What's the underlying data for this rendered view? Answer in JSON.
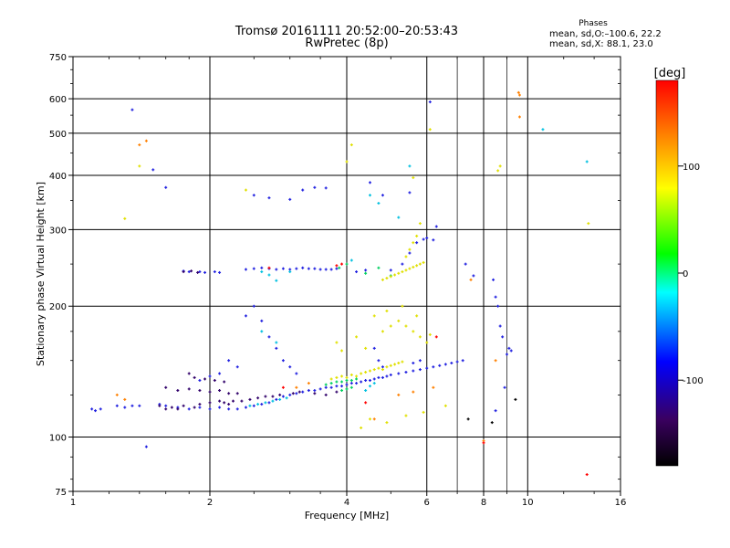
{
  "header": {
    "title_line1": "Tromsø 20161111 20:52:00–20:53:43",
    "title_line2": "RwPretec (8p)",
    "phases_title": "Phases",
    "phases_o": "mean, sd,O:–100.6, 22.2",
    "phases_x": "mean, sd,X:  88.1, 23.0"
  },
  "chart_data": {
    "type": "scatter",
    "xlabel": "Frequency [MHz]",
    "ylabel": "Stationary phase Virtual Height [km]",
    "x_scale": "log",
    "y_scale": "log",
    "xlim": [
      1,
      16
    ],
    "ylim": [
      75,
      750
    ],
    "x_ticks": [
      1,
      2,
      4,
      6,
      8,
      10,
      16
    ],
    "x_tick_labels": [
      "1",
      "2",
      "4",
      "6",
      "8",
      "10",
      "16"
    ],
    "y_ticks": [
      75,
      100,
      200,
      300,
      400,
      500,
      600,
      750
    ],
    "y_tick_labels": [
      "75",
      "100",
      "200",
      "300",
      "400",
      "500",
      "600",
      "750"
    ],
    "grid": true,
    "colorbar": {
      "label": "[deg]",
      "range": [
        -180,
        180
      ],
      "ticks": [
        100,
        0,
        -100
      ],
      "tick_labels": [
        "100",
        "0",
        "-100"
      ],
      "colors": [
        "#000000",
        "#3a0060",
        "#0000ff",
        "#00ffff",
        "#00ff00",
        "#ffff00",
        "#ff8000",
        "#ff0000"
      ]
    },
    "series": [
      {
        "color": "#2020e0",
        "points": [
          [
            1.1,
            116
          ],
          [
            1.12,
            115
          ],
          [
            1.15,
            116
          ],
          [
            1.25,
            118
          ],
          [
            1.3,
            117
          ],
          [
            1.35,
            118
          ],
          [
            1.4,
            118
          ],
          [
            1.55,
            119
          ],
          [
            1.6,
            118
          ],
          [
            1.7,
            117
          ],
          [
            1.8,
            116
          ],
          [
            1.9,
            117
          ],
          [
            2.0,
            116
          ],
          [
            2.1,
            117
          ],
          [
            2.2,
            116
          ],
          [
            2.3,
            116
          ],
          [
            2.4,
            117
          ],
          [
            2.5,
            118
          ],
          [
            2.6,
            119
          ],
          [
            2.7,
            120
          ],
          [
            2.8,
            122
          ],
          [
            2.9,
            124
          ],
          [
            3.0,
            125
          ],
          [
            3.1,
            126
          ],
          [
            3.2,
            127
          ],
          [
            3.3,
            128
          ],
          [
            3.4,
            128
          ],
          [
            3.5,
            129
          ],
          [
            3.6,
            130
          ],
          [
            3.7,
            130
          ],
          [
            3.8,
            131
          ],
          [
            3.9,
            131
          ],
          [
            4.0,
            132
          ],
          [
            4.1,
            133
          ],
          [
            4.2,
            133
          ],
          [
            4.3,
            134
          ],
          [
            4.4,
            135
          ],
          [
            4.5,
            135
          ],
          [
            4.6,
            136
          ],
          [
            4.7,
            137
          ],
          [
            4.8,
            137
          ],
          [
            4.9,
            138
          ],
          [
            5.0,
            139
          ],
          [
            5.2,
            140
          ],
          [
            5.4,
            141
          ],
          [
            5.6,
            142
          ],
          [
            5.8,
            143
          ],
          [
            6.0,
            144
          ],
          [
            6.2,
            145
          ],
          [
            6.4,
            146
          ],
          [
            6.6,
            147
          ],
          [
            6.8,
            148
          ],
          [
            7.0,
            149
          ],
          [
            7.2,
            150
          ],
          [
            1.75,
            241
          ],
          [
            1.8,
            240
          ],
          [
            1.9,
            240
          ],
          [
            1.95,
            239
          ],
          [
            2.05,
            240
          ],
          [
            2.1,
            239
          ],
          [
            2.4,
            243
          ],
          [
            2.5,
            244
          ],
          [
            2.6,
            245
          ],
          [
            2.7,
            244
          ],
          [
            2.8,
            243
          ],
          [
            2.9,
            244
          ],
          [
            3.0,
            243
          ],
          [
            3.1,
            244
          ],
          [
            3.2,
            245
          ],
          [
            3.3,
            244
          ],
          [
            3.4,
            244
          ],
          [
            3.5,
            243
          ],
          [
            3.6,
            243
          ],
          [
            3.7,
            243
          ],
          [
            3.8,
            244
          ],
          [
            4.2,
            240
          ],
          [
            4.4,
            242
          ],
          [
            5.0,
            242
          ],
          [
            5.3,
            250
          ],
          [
            5.5,
            265
          ],
          [
            5.7,
            280
          ],
          [
            5.9,
            285
          ],
          [
            6.0,
            287
          ],
          [
            6.2,
            284
          ],
          [
            6.3,
            305
          ],
          [
            2.5,
            360
          ],
          [
            2.7,
            355
          ],
          [
            3.0,
            352
          ],
          [
            3.2,
            370
          ],
          [
            3.4,
            375
          ],
          [
            3.6,
            374
          ],
          [
            1.6,
            375
          ],
          [
            1.5,
            412
          ],
          [
            1.35,
            566
          ],
          [
            6.1,
            590
          ],
          [
            4.5,
            385
          ],
          [
            4.8,
            360
          ],
          [
            5.5,
            365
          ],
          [
            2.4,
            190
          ],
          [
            2.5,
            200
          ],
          [
            2.6,
            185
          ],
          [
            2.7,
            170
          ],
          [
            2.8,
            160
          ],
          [
            2.9,
            150
          ],
          [
            3.0,
            145
          ],
          [
            3.1,
            140
          ],
          [
            2.2,
            150
          ],
          [
            2.3,
            145
          ],
          [
            2.1,
            140
          ],
          [
            1.9,
            135
          ],
          [
            2.0,
            138
          ],
          [
            4.6,
            160
          ],
          [
            4.7,
            150
          ],
          [
            4.8,
            145
          ],
          [
            5.6,
            148
          ],
          [
            5.8,
            150
          ],
          [
            1.45,
            95
          ],
          [
            8.5,
            115
          ],
          [
            8.9,
            130
          ],
          [
            9.0,
            155
          ],
          [
            9.1,
            160
          ],
          [
            7.3,
            250
          ],
          [
            7.6,
            235
          ],
          [
            8.4,
            230
          ],
          [
            8.5,
            210
          ],
          [
            8.6,
            200
          ],
          [
            8.7,
            180
          ],
          [
            8.8,
            170
          ],
          [
            9.2,
            158
          ]
        ]
      },
      {
        "color": "#30006a",
        "points": [
          [
            1.55,
            118
          ],
          [
            1.6,
            116
          ],
          [
            1.65,
            117
          ],
          [
            1.7,
            116
          ],
          [
            1.75,
            118
          ],
          [
            1.85,
            117
          ],
          [
            1.9,
            119
          ],
          [
            2.0,
            120
          ],
          [
            2.1,
            121
          ],
          [
            2.15,
            120
          ],
          [
            2.2,
            119
          ],
          [
            2.25,
            121
          ],
          [
            2.35,
            121
          ],
          [
            2.45,
            122
          ],
          [
            2.55,
            123
          ],
          [
            2.65,
            124
          ],
          [
            2.75,
            124
          ],
          [
            2.85,
            125
          ],
          [
            3.05,
            126
          ],
          [
            3.15,
            127
          ],
          [
            1.6,
            130
          ],
          [
            1.7,
            128
          ],
          [
            1.8,
            129
          ],
          [
            1.9,
            128
          ],
          [
            2.0,
            127
          ],
          [
            2.1,
            128
          ],
          [
            2.2,
            126
          ],
          [
            2.3,
            126
          ],
          [
            1.8,
            140
          ],
          [
            1.85,
            137
          ],
          [
            1.95,
            136
          ],
          [
            2.05,
            135
          ],
          [
            2.15,
            134
          ],
          [
            1.75,
            240
          ],
          [
            1.82,
            241
          ],
          [
            1.88,
            239
          ],
          [
            3.4,
            126
          ],
          [
            3.6,
            125
          ],
          [
            3.8,
            127
          ]
        ]
      },
      {
        "color": "#00c0e0",
        "points": [
          [
            2.45,
            118
          ],
          [
            2.55,
            119
          ],
          [
            2.65,
            120
          ],
          [
            2.75,
            121
          ],
          [
            2.85,
            122
          ],
          [
            2.95,
            123
          ],
          [
            2.6,
            240
          ],
          [
            2.7,
            236
          ],
          [
            2.8,
            229
          ],
          [
            5.5,
            420
          ],
          [
            10.8,
            510
          ],
          [
            13.5,
            430
          ],
          [
            3.0,
            240
          ],
          [
            4.1,
            255
          ],
          [
            4.5,
            360
          ],
          [
            4.7,
            345
          ],
          [
            5.2,
            320
          ],
          [
            2.6,
            175
          ],
          [
            2.8,
            165
          ],
          [
            4.4,
            128
          ],
          [
            4.5,
            131
          ],
          [
            4.6,
            133
          ]
        ]
      },
      {
        "color": "#00d060",
        "points": [
          [
            3.6,
            132
          ],
          [
            3.7,
            133
          ],
          [
            3.8,
            134
          ],
          [
            3.9,
            134
          ],
          [
            4.0,
            135
          ],
          [
            4.1,
            135
          ],
          [
            4.2,
            136
          ],
          [
            3.9,
            128
          ],
          [
            4.0,
            129
          ],
          [
            4.1,
            130
          ],
          [
            3.85,
            245
          ],
          [
            4.0,
            250
          ],
          [
            4.4,
            238
          ],
          [
            4.7,
            245
          ],
          [
            5.0,
            235
          ]
        ]
      },
      {
        "color": "#e0e000",
        "points": [
          [
            3.7,
            136
          ],
          [
            3.8,
            137
          ],
          [
            3.9,
            138
          ],
          [
            4.0,
            137
          ],
          [
            4.1,
            139
          ],
          [
            4.2,
            138
          ],
          [
            4.3,
            140
          ],
          [
            4.4,
            141
          ],
          [
            4.5,
            142
          ],
          [
            4.6,
            143
          ],
          [
            4.7,
            144
          ],
          [
            4.8,
            143
          ],
          [
            4.9,
            145
          ],
          [
            5.0,
            146
          ],
          [
            5.1,
            147
          ],
          [
            5.2,
            148
          ],
          [
            5.3,
            149
          ],
          [
            4.8,
            230
          ],
          [
            4.9,
            232
          ],
          [
            5.0,
            234
          ],
          [
            5.1,
            236
          ],
          [
            5.2,
            238
          ],
          [
            5.3,
            240
          ],
          [
            5.4,
            242
          ],
          [
            5.5,
            244
          ],
          [
            5.6,
            246
          ],
          [
            5.7,
            248
          ],
          [
            5.8,
            250
          ],
          [
            5.9,
            252
          ],
          [
            5.5,
            270
          ],
          [
            5.6,
            280
          ],
          [
            5.7,
            290
          ],
          [
            5.4,
            260
          ],
          [
            4.8,
            175
          ],
          [
            5.0,
            180
          ],
          [
            5.2,
            185
          ],
          [
            5.4,
            180
          ],
          [
            5.6,
            175
          ],
          [
            5.8,
            170
          ],
          [
            6.0,
            165
          ],
          [
            4.6,
            190
          ],
          [
            4.9,
            195
          ],
          [
            5.3,
            200
          ],
          [
            5.7,
            190
          ],
          [
            6.1,
            172
          ],
          [
            2.4,
            370
          ],
          [
            4.0,
            430
          ],
          [
            4.1,
            470
          ],
          [
            5.6,
            395
          ],
          [
            5.8,
            310
          ],
          [
            6.1,
            510
          ],
          [
            8.6,
            410
          ],
          [
            8.7,
            420
          ],
          [
            1.3,
            318
          ],
          [
            1.4,
            420
          ],
          [
            13.6,
            310
          ],
          [
            3.8,
            165
          ],
          [
            3.9,
            158
          ],
          [
            4.3,
            105
          ],
          [
            4.5,
            110
          ],
          [
            4.9,
            108
          ],
          [
            5.4,
            112
          ],
          [
            5.9,
            114
          ],
          [
            6.6,
            118
          ],
          [
            4.2,
            170
          ],
          [
            4.4,
            160
          ]
        ]
      },
      {
        "color": "#ff8000",
        "points": [
          [
            1.45,
            480
          ],
          [
            1.4,
            470
          ],
          [
            1.25,
            125
          ],
          [
            1.3,
            122
          ],
          [
            3.1,
            130
          ],
          [
            3.3,
            133
          ],
          [
            4.6,
            110
          ],
          [
            5.2,
            125
          ],
          [
            5.6,
            127
          ],
          [
            6.2,
            130
          ],
          [
            7.5,
            230
          ],
          [
            8.0,
            98
          ],
          [
            9.6,
            545
          ],
          [
            9.55,
            620
          ],
          [
            9.6,
            612
          ],
          [
            8.5,
            150
          ]
        ]
      },
      {
        "color": "#ff0000",
        "points": [
          [
            3.8,
            248
          ],
          [
            3.9,
            250
          ],
          [
            8.0,
            97
          ],
          [
            13.5,
            82
          ],
          [
            4.4,
            120
          ],
          [
            2.7,
            245
          ],
          [
            2.9,
            130
          ],
          [
            6.3,
            170
          ]
        ]
      },
      {
        "color": "#000000",
        "points": [
          [
            8.35,
            108
          ],
          [
            9.4,
            122
          ],
          [
            7.4,
            110
          ]
        ]
      }
    ]
  }
}
